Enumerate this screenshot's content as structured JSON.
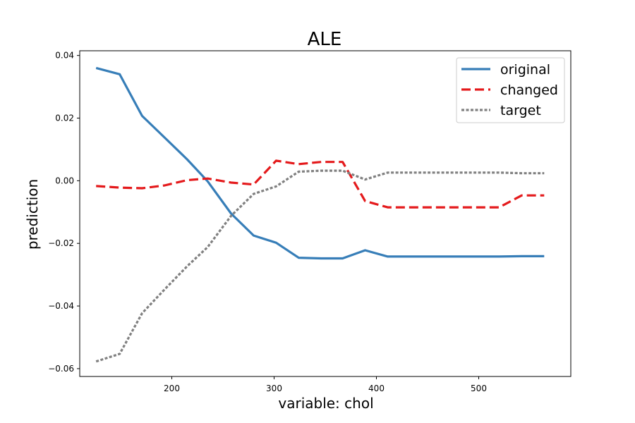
{
  "chart_data": {
    "type": "line",
    "title": "ALE",
    "xlabel": "variable: chol",
    "ylabel": "prediction",
    "xlim": [
      110,
      590
    ],
    "ylim": [
      -0.0625,
      0.0415
    ],
    "xticks": [
      200,
      300,
      400,
      500
    ],
    "yticks": [
      0.04,
      0.02,
      0.0,
      -0.02,
      -0.04,
      -0.06
    ],
    "ytick_labels": [
      "0.04",
      "0.02",
      "0.00",
      "−0.02",
      "−0.04",
      "−0.06"
    ],
    "grid": false,
    "legend_position": "top-right",
    "series": [
      {
        "name": "original",
        "color": "#377eb8",
        "style": "solid",
        "x": [
          126,
          149,
          171,
          193,
          215,
          235,
          258,
          280,
          302,
          324,
          346,
          367,
          389,
          411,
          432,
          454,
          476,
          498,
          520,
          542,
          564
        ],
        "y": [
          0.036,
          0.034,
          0.0207,
          0.0138,
          0.0068,
          -0.0002,
          -0.0105,
          -0.0175,
          -0.0198,
          -0.0246,
          -0.0248,
          -0.0248,
          -0.0222,
          -0.0242,
          -0.0242,
          -0.0242,
          -0.0242,
          -0.0242,
          -0.0242,
          -0.0241,
          -0.0241
        ]
      },
      {
        "name": "changed",
        "color": "#e41a1c",
        "style": "dashed",
        "x": [
          126,
          149,
          171,
          193,
          215,
          235,
          258,
          280,
          302,
          324,
          346,
          367,
          389,
          411,
          432,
          454,
          476,
          498,
          520,
          542,
          564
        ],
        "y": [
          -0.0017,
          -0.0022,
          -0.0024,
          -0.0015,
          0.0002,
          0.0007,
          -0.0006,
          -0.0012,
          0.0064,
          0.0053,
          0.006,
          0.006,
          -0.0065,
          -0.0085,
          -0.0085,
          -0.0085,
          -0.0085,
          -0.0085,
          -0.0085,
          -0.0047,
          -0.0047
        ]
      },
      {
        "name": "target",
        "color": "#808080",
        "style": "dotted",
        "x": [
          126,
          149,
          171,
          193,
          215,
          235,
          258,
          280,
          302,
          324,
          346,
          367,
          389,
          411,
          432,
          454,
          476,
          498,
          520,
          542,
          564
        ],
        "y": [
          -0.0577,
          -0.0553,
          -0.0423,
          -0.0347,
          -0.0273,
          -0.0212,
          -0.0112,
          -0.0042,
          -0.0018,
          0.0029,
          0.0032,
          0.0032,
          0.0004,
          0.0026,
          0.0026,
          0.0026,
          0.0026,
          0.0026,
          0.0026,
          0.0024,
          0.0024
        ]
      }
    ]
  }
}
